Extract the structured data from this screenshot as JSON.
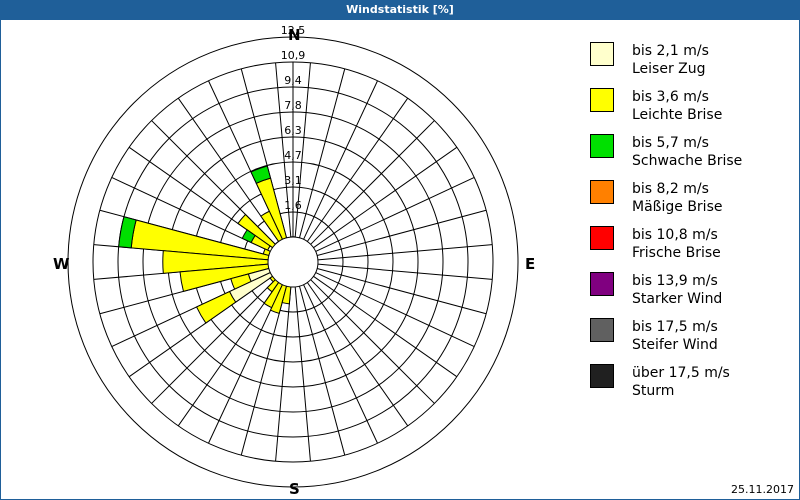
{
  "title": "Windstatistik [%]",
  "date": "25.11.2017",
  "compass": {
    "n": "N",
    "e": "E",
    "s": "S",
    "w": "W"
  },
  "legend": [
    {
      "range": "bis 2,1 m/s",
      "name": "Leiser Zug",
      "color": "#ffffcc"
    },
    {
      "range": "bis 3,6 m/s",
      "name": "Leichte Brise",
      "color": "#ffff00"
    },
    {
      "range": "bis 5,7 m/s",
      "name": "Schwache Brise",
      "color": "#00e000"
    },
    {
      "range": "bis 8,2 m/s",
      "name": "Mäßige Brise",
      "color": "#ff8000"
    },
    {
      "range": "bis 10,8 m/s",
      "name": "Frische Brise",
      "color": "#ff0000"
    },
    {
      "range": "bis 13,9 m/s",
      "name": "Starker Wind",
      "color": "#800080"
    },
    {
      "range": "bis 17,5 m/s",
      "name": "Steifer Wind",
      "color": "#606060"
    },
    {
      "range": "über 17,5 m/s",
      "name": "Sturm",
      "color": "#202020"
    }
  ],
  "chart_data": {
    "type": "wind-rose",
    "title": "Windstatistik [%]",
    "ring_labels": [
      "1,6",
      "3,1",
      "4,7",
      "6,3",
      "7,8",
      "9,4",
      "10,9",
      "12,5"
    ],
    "rmax": 12.5,
    "sector_width_deg": 10,
    "classes": [
      "Leiser Zug",
      "Leichte Brise",
      "Schwache Brise",
      "Mäßige Brise",
      "Frische Brise",
      "Starker Wind",
      "Steifer Wind",
      "Sturm"
    ],
    "sectors": [
      {
        "dir": 0,
        "cum": [
          0.5,
          1.8
        ]
      },
      {
        "dir": 350,
        "cum": [
          0.6,
          1.7
        ]
      },
      {
        "dir": 340,
        "cum": [
          0.8,
          6.2,
          7.1
        ]
      },
      {
        "dir": 330,
        "cum": [
          1.0,
          4.0
        ]
      },
      {
        "dir": 320,
        "cum": [
          1.2,
          1.8
        ]
      },
      {
        "dir": 310,
        "cum": [
          1.2,
          4.8
        ]
      },
      {
        "dir": 300,
        "cum": [
          2.0,
          3.3,
          4.0
        ]
      },
      {
        "dir": 290,
        "cum": [
          1.5,
          2.2
        ]
      },
      {
        "dir": 280,
        "cum": [
          1.6,
          11.6,
          12.5
        ]
      },
      {
        "dir": 270,
        "cum": [
          1.2,
          9.3
        ]
      },
      {
        "dir": 260,
        "cum": [
          1.4,
          8.1
        ]
      },
      {
        "dir": 250,
        "cum": [
          3.3,
          4.6
        ]
      },
      {
        "dir": 240,
        "cum": [
          5.0,
          7.6
        ]
      },
      {
        "dir": 230,
        "cum": [
          1.0,
          2.0
        ]
      },
      {
        "dir": 220,
        "cum": [
          0.5,
          2.6
        ]
      },
      {
        "dir": 210,
        "cum": [
          0.6,
          3.6
        ]
      },
      {
        "dir": 200,
        "cum": [
          0.5,
          3.8
        ]
      },
      {
        "dir": 190,
        "cum": [
          0.5,
          3.0
        ]
      }
    ]
  }
}
